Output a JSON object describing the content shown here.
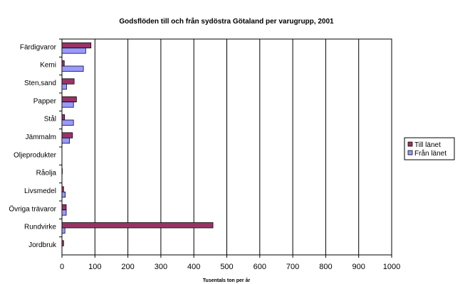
{
  "chart_data": {
    "type": "bar",
    "orientation": "horizontal",
    "title": "Godsflöden till och från sydöstra Götaland per varugrupp, 2001",
    "xlabel": "Tusentals ton per år",
    "ylabel": "",
    "xlim": [
      0,
      1000
    ],
    "xticks": [
      0,
      100,
      200,
      300,
      400,
      500,
      600,
      700,
      800,
      900,
      1000
    ],
    "grid": true,
    "legend_position": "right",
    "categories": [
      "Färdigvaror",
      "Kemi",
      "Sten,sand",
      "Papper",
      "Stål",
      "Jämmalm",
      "Oljeprodukter",
      "Råolja",
      "Livsmedel",
      "Övriga trävaror",
      "Rundvirke",
      "Jordbruk"
    ],
    "series": [
      {
        "name": "Till länet",
        "color": "#993366",
        "values": [
          88,
          7,
          37,
          44,
          8,
          32,
          0,
          1,
          5,
          13,
          458,
          5
        ]
      },
      {
        "name": "Från länet",
        "color": "#9999ff",
        "values": [
          72,
          65,
          14,
          35,
          35,
          23,
          0,
          0,
          10,
          13,
          9,
          0
        ]
      }
    ]
  }
}
